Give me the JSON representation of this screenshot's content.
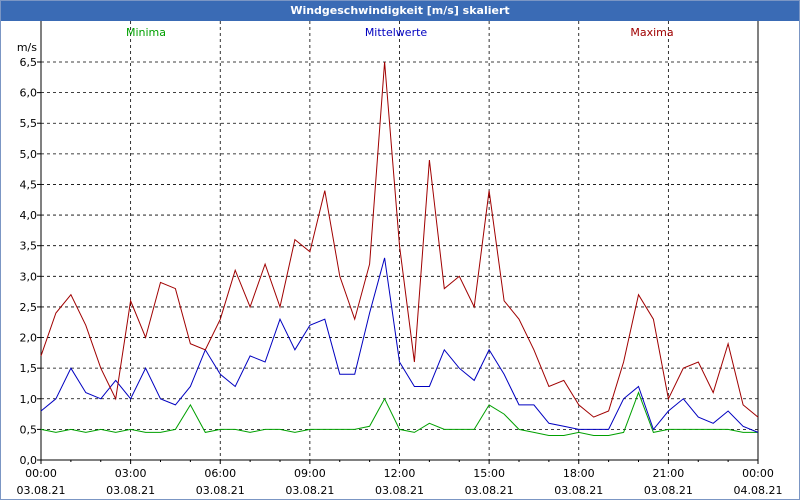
{
  "window": {
    "title": "Windgeschwindigkeit [m/s] skaliert"
  },
  "colors": {
    "minima": "#00a000",
    "mittelwerte": "#0000c0",
    "maxima": "#a00000",
    "grid": "#000000"
  },
  "chart_data": {
    "type": "line",
    "title": "Windgeschwindigkeit [m/s] skaliert",
    "ylabel": "m/s",
    "xlabel": "",
    "ylim": [
      0,
      6.5
    ],
    "yticks": [
      "0,0",
      "0,5",
      "1,0",
      "1,5",
      "2,0",
      "2,5",
      "3,0",
      "3,5",
      "4,0",
      "4,5",
      "5,0",
      "5,5",
      "6,0",
      "6,5"
    ],
    "xticks": [
      {
        "time": "00:00",
        "date": "03.08.21"
      },
      {
        "time": "03:00",
        "date": "03.08.21"
      },
      {
        "time": "06:00",
        "date": "03.08.21"
      },
      {
        "time": "09:00",
        "date": "03.08.21"
      },
      {
        "time": "12:00",
        "date": "03.08.21"
      },
      {
        "time": "15:00",
        "date": "03.08.21"
      },
      {
        "time": "18:00",
        "date": "03.08.21"
      },
      {
        "time": "21:00",
        "date": "03.08.21"
      },
      {
        "time": "00:00",
        "date": "04.08.21"
      }
    ],
    "x_hours": [
      0,
      0.5,
      1,
      1.5,
      2,
      2.5,
      3,
      3.5,
      4,
      4.5,
      5,
      5.5,
      6,
      6.5,
      7,
      7.5,
      8,
      8.5,
      9,
      9.5,
      10,
      10.5,
      11,
      11.5,
      12,
      12.5,
      13,
      13.5,
      14,
      14.5,
      15,
      15.5,
      16,
      16.5,
      17,
      17.5,
      18,
      18.5,
      19,
      19.5,
      20,
      20.5,
      21,
      21.5,
      22,
      22.5,
      23,
      23.5,
      24
    ],
    "grid": true,
    "legend_placement": "top",
    "series": [
      {
        "name": "Minima",
        "values": [
          0.5,
          0.45,
          0.5,
          0.45,
          0.5,
          0.45,
          0.5,
          0.45,
          0.45,
          0.5,
          0.9,
          0.45,
          0.5,
          0.5,
          0.45,
          0.5,
          0.5,
          0.45,
          0.5,
          0.5,
          0.5,
          0.5,
          0.55,
          1.0,
          0.5,
          0.45,
          0.6,
          0.5,
          0.5,
          0.5,
          0.9,
          0.75,
          0.5,
          0.45,
          0.4,
          0.4,
          0.45,
          0.4,
          0.4,
          0.45,
          1.1,
          0.45,
          0.5,
          0.5,
          0.5,
          0.5,
          0.5,
          0.45,
          0.45
        ]
      },
      {
        "name": "Mittelwerte",
        "values": [
          0.8,
          1.0,
          1.5,
          1.1,
          1.0,
          1.3,
          1.0,
          1.5,
          1.0,
          0.9,
          1.2,
          1.8,
          1.4,
          1.2,
          1.7,
          1.6,
          2.3,
          1.8,
          2.2,
          2.3,
          1.4,
          1.4,
          2.4,
          3.3,
          1.6,
          1.2,
          1.2,
          1.8,
          1.5,
          1.3,
          1.8,
          1.4,
          0.9,
          0.9,
          0.6,
          0.55,
          0.5,
          0.5,
          0.5,
          1.0,
          1.2,
          0.5,
          0.8,
          1.0,
          0.7,
          0.6,
          0.8,
          0.55,
          0.45
        ]
      },
      {
        "name": "Maxima",
        "values": [
          1.7,
          2.4,
          2.7,
          2.2,
          1.5,
          1.0,
          2.6,
          2.0,
          2.9,
          2.8,
          1.9,
          1.8,
          2.3,
          3.1,
          2.5,
          3.2,
          2.5,
          3.6,
          3.4,
          4.4,
          3.0,
          2.3,
          3.2,
          6.5,
          3.5,
          1.6,
          4.9,
          2.8,
          3.0,
          2.5,
          4.4,
          2.6,
          2.3,
          1.8,
          1.2,
          1.3,
          0.9,
          0.7,
          0.8,
          1.6,
          2.7,
          2.3,
          1.0,
          1.5,
          1.6,
          1.1,
          1.9,
          0.9,
          0.7
        ]
      }
    ]
  }
}
